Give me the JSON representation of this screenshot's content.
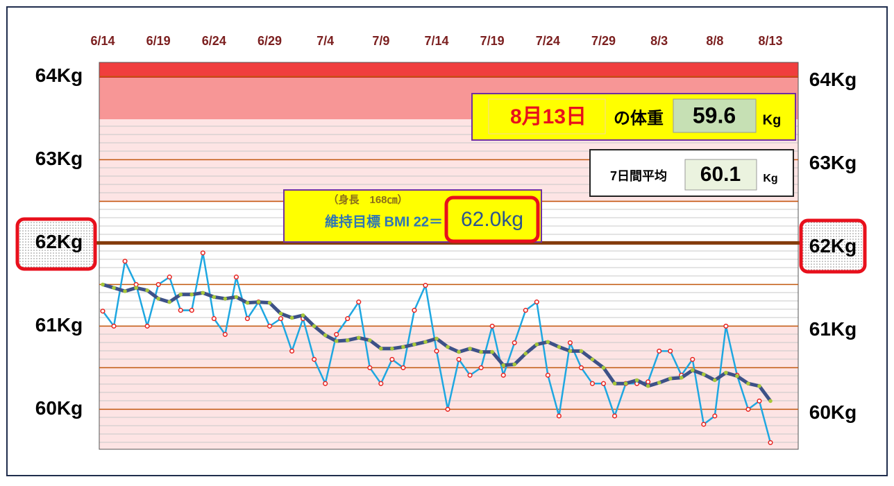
{
  "chart_data": {
    "type": "line",
    "categories": [
      "6/14",
      null,
      null,
      null,
      null,
      "6/19",
      null,
      null,
      null,
      null,
      "6/24",
      null,
      null,
      null,
      null,
      "6/29",
      null,
      null,
      null,
      null,
      "7/4",
      null,
      null,
      null,
      null,
      "7/9",
      null,
      null,
      null,
      null,
      "7/14",
      null,
      null,
      null,
      null,
      "7/19",
      null,
      null,
      null,
      null,
      "7/24",
      null,
      null,
      null,
      null,
      "7/29",
      null,
      null,
      null,
      null,
      "8/3",
      null,
      null,
      null,
      null,
      "8/8",
      null,
      null,
      null,
      null,
      "8/13"
    ],
    "series": [
      {
        "color": "#1ea7e1",
        "marker_color": "#e8201c",
        "values": [
          61.18,
          61.0,
          61.78,
          61.5,
          61.0,
          61.5,
          61.59,
          61.19,
          61.19,
          61.88,
          61.09,
          60.9,
          61.59,
          61.09,
          61.29,
          61.0,
          61.09,
          60.7,
          61.09,
          60.6,
          60.31,
          60.9,
          61.09,
          61.29,
          60.5,
          60.31,
          60.6,
          60.5,
          61.19,
          61.49,
          60.7,
          60.0,
          60.6,
          60.41,
          60.5,
          61.0,
          60.41,
          60.8,
          61.19,
          61.29,
          60.41,
          59.92,
          60.8,
          60.5,
          60.31,
          60.31,
          59.92,
          60.31,
          60.31,
          60.33,
          60.7,
          60.7,
          60.41,
          60.6,
          59.82,
          59.92,
          61.0,
          60.41,
          60.0,
          60.1,
          59.6
        ]
      },
      {
        "color": "#3d5187",
        "marker_color": "#a8c83a",
        "values": [
          61.5,
          61.46,
          61.42,
          61.46,
          61.43,
          61.33,
          61.29,
          61.38,
          61.38,
          61.4,
          61.35,
          61.33,
          61.35,
          61.28,
          61.29,
          61.28,
          61.15,
          61.1,
          61.13,
          61.0,
          60.89,
          60.82,
          60.83,
          60.86,
          60.83,
          60.73,
          60.73,
          60.75,
          60.78,
          60.81,
          60.85,
          60.75,
          60.69,
          60.73,
          60.69,
          60.69,
          60.53,
          60.54,
          60.67,
          60.78,
          60.81,
          60.75,
          60.7,
          60.7,
          60.6,
          60.5,
          60.31,
          60.31,
          60.35,
          60.28,
          60.32,
          60.37,
          60.38,
          60.47,
          60.42,
          60.35,
          60.44,
          60.4,
          60.31,
          60.28,
          60.1
        ]
      }
    ],
    "ylim": [
      59.52,
      64.17
    ],
    "yticks": [
      {
        "value": 60,
        "label": "60Kg"
      },
      {
        "value": 61,
        "label": "61Kg"
      },
      {
        "value": 62,
        "label": "62Kg"
      },
      {
        "value": 63,
        "label": "63Kg"
      },
      {
        "value": 64,
        "label": "64Kg"
      }
    ],
    "minor_grid": [
      60.5,
      61.5,
      62.5
    ],
    "target_line": 62,
    "height_note": "（身長　168㎝）",
    "target_text": "維持目標 BMI 22＝",
    "target_value": "62.0kg",
    "today_date": "8月13日",
    "today_text": "の体重",
    "today_value": "59.6",
    "today_unit": "Kg",
    "avg_text": "7日間平均",
    "avg_value": "60.1",
    "avg_unit": "Kg"
  }
}
